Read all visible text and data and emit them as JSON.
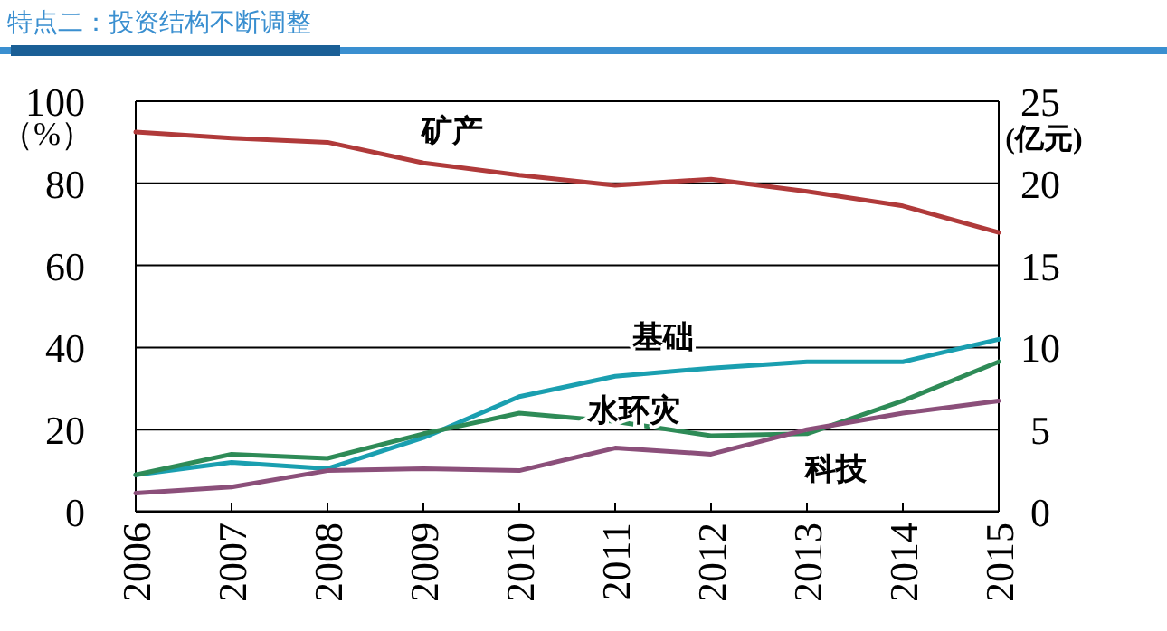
{
  "chart_data": {
    "type": "line",
    "title": "特点二：投资结构不断调整",
    "ylabel": "（%）",
    "y2label": "(亿元)",
    "categories": [
      "2006",
      "2007",
      "2008",
      "2009",
      "2010",
      "2011",
      "2012",
      "2013",
      "2014",
      "2015"
    ],
    "series": [
      {
        "name": "矿产",
        "color": "#b03a3a",
        "values": [
          92.5,
          91,
          90,
          85,
          82,
          79.5,
          81,
          78,
          74.5,
          68
        ]
      },
      {
        "name": "基础",
        "color": "#1a9fb0",
        "values": [
          9,
          12,
          10.5,
          18,
          28,
          33,
          35,
          36.5,
          36.5,
          42
        ]
      },
      {
        "name": "水环灾",
        "color": "#2e8b57",
        "values": [
          9,
          14,
          13,
          19,
          24,
          22,
          18.5,
          19,
          27,
          36.5
        ]
      },
      {
        "name": "科技",
        "color": "#8b4f7a",
        "values": [
          4.5,
          6,
          10,
          10.5,
          10,
          15.5,
          14,
          20,
          24,
          27
        ]
      }
    ],
    "ylim": [
      0,
      100
    ],
    "yticks": [
      0,
      20,
      40,
      60,
      80,
      100
    ],
    "y2lim": [
      0,
      25
    ],
    "y2ticks": [
      0,
      5,
      10,
      15,
      20,
      25
    ],
    "grid": "y",
    "marker": "none",
    "line_style": "solid"
  }
}
